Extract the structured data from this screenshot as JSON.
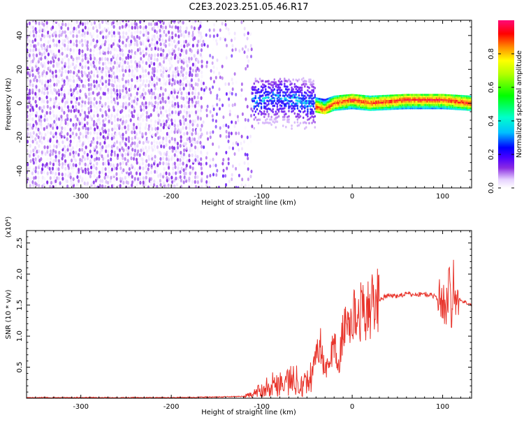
{
  "title": "C2E3.2023.251.05.46.R17",
  "chart_data": [
    {
      "type": "heatmap",
      "xlabel": "Height of straight line (km)",
      "ylabel": "Frequency (Hz)",
      "xlim": [
        -360,
        132
      ],
      "ylim": [
        -50,
        49
      ],
      "xticks": [
        -300,
        -200,
        -100,
        0,
        100
      ],
      "yticks": [
        -40,
        -20,
        0,
        20,
        40
      ],
      "colorbar": {
        "label": "Normalized spectral amplitude",
        "range": [
          0,
          1
        ],
        "ticks": [
          "0.0",
          "0.2",
          "0.4",
          "0.6",
          "0.8"
        ],
        "tick_values": [
          0.0,
          0.2,
          0.4,
          0.6,
          0.8
        ],
        "colormap_stops": [
          "#ffffff",
          "#e6d2ff",
          "#8a2be2",
          "#4b00ff",
          "#0000ff",
          "#00bfff",
          "#00ffcc",
          "#00ff00",
          "#b4ff00",
          "#ffff00",
          "#ff8c00",
          "#ff0000",
          "#ff0a78"
        ]
      },
      "regions": [
        {
          "x": [
            -360,
            -165
          ],
          "description_values": {
            "freq_spread": [
              -50,
              49
            ],
            "amplitude": [
              0.0,
              0.2
            ],
            "density": "dense"
          }
        },
        {
          "x": [
            -165,
            -110
          ],
          "description_values": {
            "freq_spread": [
              -50,
              49
            ],
            "amplitude": [
              0.0,
              0.25
            ],
            "density": "sparse"
          }
        },
        {
          "x": [
            -110,
            -40
          ],
          "description_values": {
            "freq_spread": [
              -15,
              15
            ],
            "amplitude": [
              0.1,
              0.5
            ]
          }
        },
        {
          "x": [
            -40,
            132
          ],
          "description_values": {
            "freq_spread": [
              -4,
              4
            ],
            "amplitude": [
              0.5,
              1.0
            ]
          }
        }
      ],
      "signal_centerline": [
        [
          -165,
          0
        ],
        [
          -120,
          0
        ],
        [
          -100,
          2
        ],
        [
          -80,
          3
        ],
        [
          -60,
          1
        ],
        [
          -40,
          -1
        ],
        [
          -30,
          -2
        ],
        [
          -20,
          0
        ],
        [
          0,
          1
        ],
        [
          20,
          0
        ],
        [
          60,
          1
        ],
        [
          100,
          1
        ],
        [
          132,
          0
        ]
      ]
    },
    {
      "type": "line",
      "xlabel": "Height of straight line (km)",
      "ylabel": "SNR (10 * v/v)",
      "y_multiplier": "(x10⁴)",
      "xlim": [
        -360,
        132
      ],
      "ylim": [
        0,
        2.7
      ],
      "xticks": [
        -300,
        -200,
        -100,
        0,
        100
      ],
      "yticks": [
        "0.5",
        "1.0",
        "1.5",
        "2.0",
        "2.5"
      ],
      "ytick_values": [
        0.5,
        1.0,
        1.5,
        2.0,
        2.5
      ],
      "series_color": "#e8332a",
      "x": [
        -360,
        -300,
        -250,
        -200,
        -150,
        -120,
        -110,
        -100,
        -90,
        -80,
        -70,
        -60,
        -50,
        -45,
        -40,
        -35,
        -30,
        -25,
        -20,
        -15,
        -10,
        -5,
        0,
        10,
        20,
        30,
        40,
        50,
        60,
        70,
        80,
        90,
        95,
        100,
        105,
        108,
        110,
        112,
        115,
        120,
        132
      ],
      "values": [
        0.01,
        0.01,
        0.01,
        0.01,
        0.02,
        0.03,
        0.06,
        0.15,
        0.22,
        0.25,
        0.28,
        0.3,
        0.25,
        0.35,
        0.75,
        0.85,
        0.4,
        0.6,
        0.9,
        0.5,
        1.1,
        1.2,
        1.3,
        1.4,
        1.45,
        1.6,
        1.65,
        1.65,
        1.68,
        1.67,
        1.68,
        1.65,
        1.6,
        1.55,
        1.45,
        2.2,
        1.2,
        1.9,
        1.6,
        1.58,
        1.5
      ]
    }
  ]
}
